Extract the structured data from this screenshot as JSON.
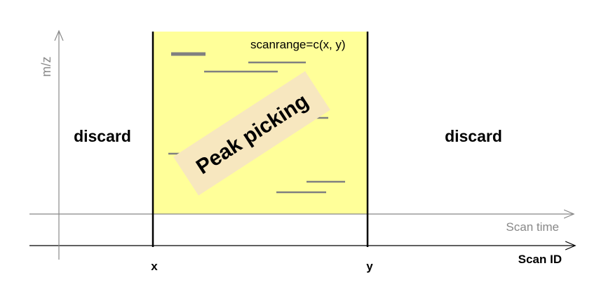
{
  "labels": {
    "y_axis": "m/z",
    "scan_time_axis": "Scan time",
    "scan_id_axis": "Scan ID",
    "left_region": "discard",
    "right_region": "discard",
    "range_start": "x",
    "range_end": "y",
    "scanrange_call": "scanrange=c(x, y)",
    "process": "Peak picking"
  },
  "colors": {
    "range_fill": "#ffff99",
    "axis_gray": "#888888",
    "border_black": "#000000",
    "peak_segment": "#808080",
    "process_banner": "#f7e7bf",
    "axis_label_gray": "#888888"
  }
}
